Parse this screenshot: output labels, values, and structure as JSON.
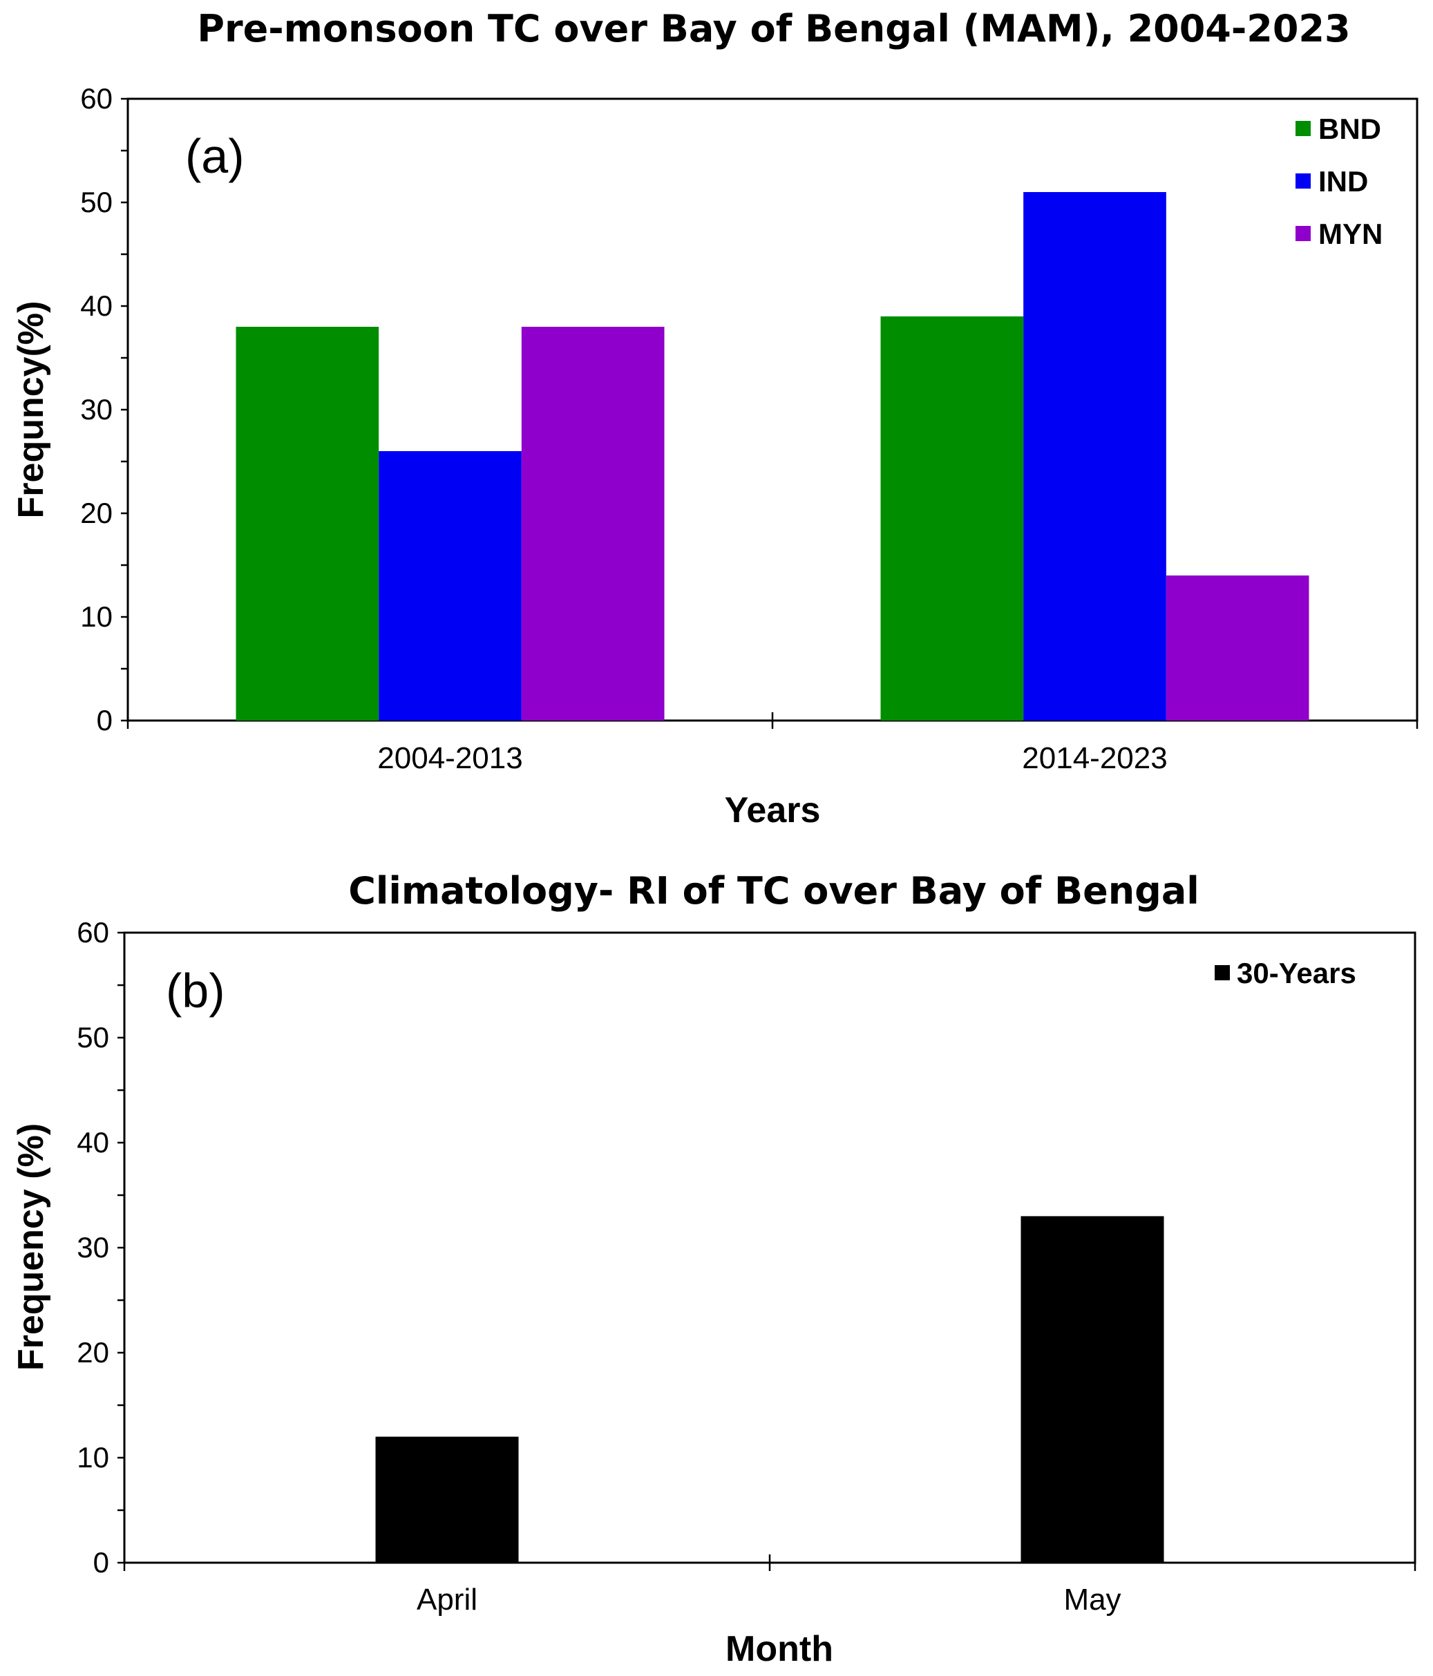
{
  "chart_data": [
    {
      "type": "bar",
      "panel_label": "(a)",
      "title": "Pre-monsoon TC over Bay of Bengal (MAM), 2004-2023",
      "xlabel": "Years",
      "ylabel": "Frequncy(%)",
      "ylim": [
        0,
        60
      ],
      "yticks": [
        0,
        10,
        20,
        30,
        40,
        50,
        60
      ],
      "categories": [
        "2004-2013",
        "2014-2023"
      ],
      "series": [
        {
          "name": "BND",
          "color": "#008e00",
          "values": [
            38,
            39
          ]
        },
        {
          "name": "IND",
          "color": "#0000f5",
          "values": [
            26,
            51
          ]
        },
        {
          "name": "MYN",
          "color": "#9000cc",
          "values": [
            38,
            14
          ]
        }
      ],
      "legend_position": "top-right",
      "grid": false
    },
    {
      "type": "bar",
      "panel_label": "(b)",
      "title": "Climatology- RI of TC over Bay of Bengal",
      "xlabel": "Month",
      "ylabel": "Frequency  (%)",
      "ylim": [
        0,
        60
      ],
      "yticks": [
        0,
        10,
        20,
        30,
        40,
        50,
        60
      ],
      "categories": [
        "April",
        "May"
      ],
      "series": [
        {
          "name": "30-Years",
          "color": "#000000",
          "values": [
            12,
            33
          ]
        }
      ],
      "legend_position": "top-right",
      "grid": false
    }
  ]
}
